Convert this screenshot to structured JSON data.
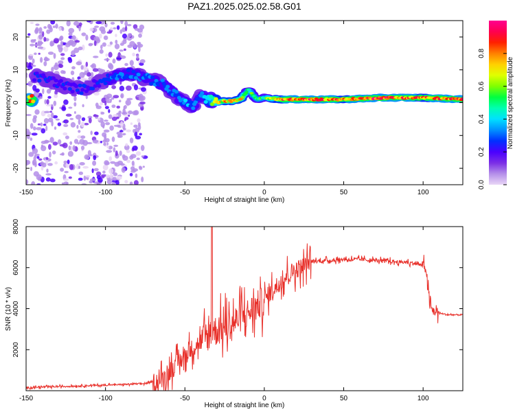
{
  "figure": {
    "title": "PAZ1.2025.025.02.58.G01"
  },
  "chart_data": [
    {
      "type": "heatmap",
      "xlabel": "Height of straight line (km)",
      "ylabel": "Frequency (Hz)",
      "xlim": [
        -150,
        125
      ],
      "ylim": [
        -25,
        25
      ],
      "xticks": [
        -150,
        -100,
        -50,
        0,
        50,
        100
      ],
      "yticks": [
        -20,
        -10,
        0,
        10,
        20
      ],
      "grid": false,
      "colorbar": {
        "label": "Normalized spectral amplitude",
        "range": [
          0,
          1
        ],
        "ticks": [
          0.0,
          0.2,
          0.4,
          0.6,
          0.8
        ],
        "colormap": [
          "#e9d6f6",
          "#b48ee9",
          "#7b2ee6",
          "#4a00ff",
          "#0030ff",
          "#0090ff",
          "#00e0ff",
          "#00ffb0",
          "#00ff40",
          "#80ff00",
          "#e0ff00",
          "#ffd000",
          "#ff8000",
          "#ff2000",
          "#ff0050",
          "#ff0090"
        ]
      },
      "ridge": {
        "x": [
          -145,
          -135,
          -125,
          -115,
          -105,
          -95,
          -85,
          -75,
          -65,
          -60,
          -55,
          -50,
          -45,
          -40,
          -35,
          -30,
          -25,
          -20,
          -15,
          -10,
          -5,
          0,
          10,
          25,
          50,
          75,
          100,
          125
        ],
        "y": [
          8,
          7,
          5,
          4,
          6,
          8,
          9,
          7.5,
          6,
          4,
          2,
          0,
          -1,
          2,
          1,
          0,
          0.5,
          0.5,
          1,
          4,
          1,
          1.5,
          1,
          1,
          1,
          1.5,
          1.5,
          1
        ],
        "amplitude": [
          0.25,
          0.25,
          0.25,
          0.25,
          0.25,
          0.3,
          0.3,
          0.3,
          0.3,
          0.35,
          0.35,
          0.35,
          0.35,
          0.3,
          0.45,
          0.7,
          0.75,
          0.8,
          0.8,
          0.5,
          0.6,
          0.55,
          0.85,
          0.9,
          0.85,
          0.9,
          0.85,
          0.9
        ]
      },
      "noise_region": {
        "x": [
          -150,
          -75
        ],
        "y": [
          -25,
          25
        ]
      }
    },
    {
      "type": "line",
      "xlabel": "Height of straight line (km)",
      "ylabel": "SNR (10 * v/v)",
      "xlim": [
        -150,
        125
      ],
      "ylim": [
        0,
        8000
      ],
      "xticks": [
        -150,
        -100,
        -50,
        0,
        50,
        100
      ],
      "yticks": [
        2000,
        4000,
        6000,
        8000
      ],
      "grid": false,
      "line_color": "#e8302a",
      "series": [
        {
          "x": [
            -150,
            -130,
            -110,
            -90,
            -75,
            -65,
            -60,
            -55,
            -50,
            -45,
            -40,
            -35,
            -33,
            -30,
            -25,
            -20,
            -15,
            -10,
            -5,
            0,
            5,
            10,
            15,
            20,
            25,
            28,
            30,
            40,
            50,
            60,
            70,
            80,
            90,
            95,
            100,
            102,
            104,
            106,
            110,
            115,
            125
          ],
          "y": [
            150,
            200,
            250,
            300,
            350,
            500,
            900,
            1300,
            1700,
            2100,
            2400,
            2700,
            3000,
            2900,
            3100,
            3300,
            3600,
            3800,
            4100,
            4400,
            4900,
            5300,
            5700,
            5900,
            6100,
            6300,
            6300,
            6350,
            6400,
            6400,
            6350,
            6300,
            6250,
            6200,
            6100,
            5900,
            4200,
            3900,
            3800,
            3700,
            3700
          ]
        }
      ]
    }
  ]
}
